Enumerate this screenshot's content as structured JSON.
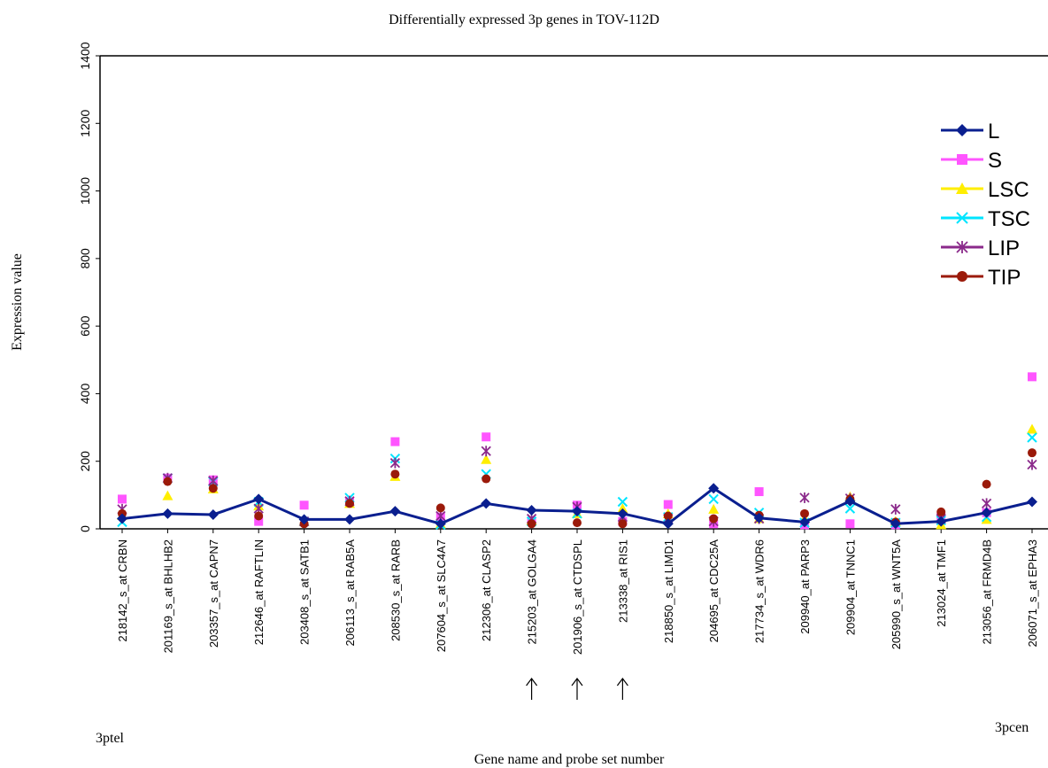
{
  "chart_data": {
    "type": "line",
    "title": "Differentially expressed 3p genes in TOV-112D",
    "xlabel": "Gene name and probe set number",
    "ylabel": "Expression value",
    "ylim": [
      0,
      1400
    ],
    "yticks": [
      0,
      200,
      400,
      600,
      800,
      1000,
      1200,
      1400
    ],
    "grid": false,
    "legend_position": "top-right",
    "left_end_label": "3ptel",
    "right_end_label": "3pcen",
    "marked_categories": [
      "215203_at  GOLGA4",
      "201906_s_at  CTDSPL",
      "213338_at  RIS1"
    ],
    "categories": [
      "218142_s_at  CRBN",
      "201169_s_at  BHLHB2",
      "203357_s_at  CAPN7",
      "212646_at  RAFTLIN",
      "203408_s_at  SATB1",
      "206113_s_at  RAB5A",
      "208530_s_at  RARB",
      "207604_s_at  SLC4A7",
      "212306_at  CLASP2",
      "215203_at  GOLGA4",
      "201906_s_at  CTDSPL",
      "213338_at  RIS1",
      "218850_s_at  LIMD1",
      "204695_at  CDC25A",
      "217734_s_at  WDR6",
      "209940_at  PARP3",
      "209904_at  TNNC1",
      "205990_s_at  WNT5A",
      "213024_at  TMF1",
      "213056_at  FRMD4B",
      "206071_s_at  EPHA3"
    ],
    "series": [
      {
        "name": "L",
        "color": "#0a1f8f",
        "marker": "diamond",
        "connected": true,
        "values": [
          30,
          45,
          42,
          88,
          28,
          28,
          52,
          15,
          75,
          55,
          52,
          45,
          15,
          120,
          32,
          20,
          82,
          15,
          22,
          48,
          80
        ]
      },
      {
        "name": "S",
        "color": "#ff55ff",
        "marker": "square",
        "connected": false,
        "values": [
          88,
          150,
          145,
          22,
          70,
          80,
          258,
          35,
          272,
          22,
          70,
          22,
          72,
          15,
          110,
          12,
          15,
          12,
          35,
          48,
          450
        ]
      },
      {
        "name": "LSC",
        "color": "#ffee00",
        "marker": "triangle",
        "connected": false,
        "values": [
          40,
          98,
          118,
          68,
          22,
          75,
          155,
          15,
          205,
          25,
          45,
          60,
          45,
          58,
          30,
          30,
          95,
          22,
          12,
          28,
          295
        ]
      },
      {
        "name": "TSC",
        "color": "#00e5ff",
        "marker": "x",
        "connected": false,
        "values": [
          20,
          150,
          140,
          80,
          22,
          92,
          208,
          12,
          162,
          22,
          45,
          80,
          35,
          88,
          48,
          18,
          60,
          18,
          25,
          35,
          270
        ]
      },
      {
        "name": "LIP",
        "color": "#8b2a8b",
        "marker": "star",
        "connected": false,
        "values": [
          58,
          150,
          142,
          60,
          22,
          82,
          195,
          38,
          230,
          30,
          65,
          35,
          30,
          22,
          30,
          92,
          90,
          58,
          30,
          75,
          190
        ]
      },
      {
        "name": "TIP",
        "color": "#9b1a0a",
        "marker": "circle",
        "connected": false,
        "values": [
          45,
          140,
          120,
          38,
          15,
          75,
          162,
          62,
          148,
          15,
          18,
          15,
          38,
          30,
          40,
          45,
          88,
          20,
          50,
          132,
          225
        ]
      }
    ]
  }
}
